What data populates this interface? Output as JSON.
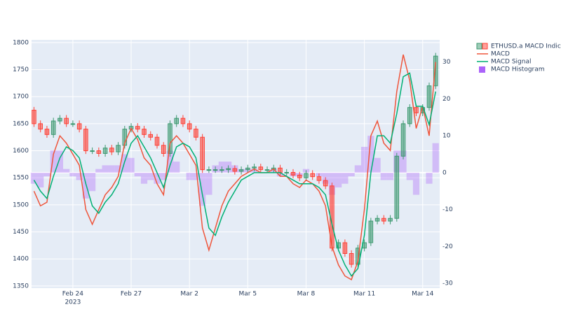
{
  "chart_data": {
    "type": "candlestick",
    "x": [
      "2023-02-22 00:00",
      "2023-02-22 08:00",
      "2023-02-22 16:00",
      "2023-02-23 00:00",
      "2023-02-23 08:00",
      "2023-02-23 16:00",
      "2023-02-24 00:00",
      "2023-02-24 08:00",
      "2023-02-24 16:00",
      "2023-02-25 00:00",
      "2023-02-25 08:00",
      "2023-02-25 16:00",
      "2023-02-26 00:00",
      "2023-02-26 08:00",
      "2023-02-26 16:00",
      "2023-02-27 00:00",
      "2023-02-27 08:00",
      "2023-02-27 16:00",
      "2023-02-28 00:00",
      "2023-02-28 08:00",
      "2023-02-28 16:00",
      "2023-03-01 00:00",
      "2023-03-01 08:00",
      "2023-03-01 16:00",
      "2023-03-02 00:00",
      "2023-03-02 08:00",
      "2023-03-02 16:00",
      "2023-03-03 00:00",
      "2023-03-03 08:00",
      "2023-03-03 16:00",
      "2023-03-04 00:00",
      "2023-03-04 08:00",
      "2023-03-04 16:00",
      "2023-03-05 00:00",
      "2023-03-05 08:00",
      "2023-03-05 16:00",
      "2023-03-06 00:00",
      "2023-03-06 08:00",
      "2023-03-06 16:00",
      "2023-03-07 00:00",
      "2023-03-07 08:00",
      "2023-03-07 16:00",
      "2023-03-08 00:00",
      "2023-03-08 08:00",
      "2023-03-08 16:00",
      "2023-03-09 00:00",
      "2023-03-09 08:00",
      "2023-03-09 16:00",
      "2023-03-10 00:00",
      "2023-03-10 08:00",
      "2023-03-10 16:00",
      "2023-03-11 00:00",
      "2023-03-11 08:00",
      "2023-03-11 16:00",
      "2023-03-12 00:00",
      "2023-03-12 08:00",
      "2023-03-12 16:00",
      "2023-03-13 00:00",
      "2023-03-13 08:00",
      "2023-03-13 16:00",
      "2023-03-14 00:00",
      "2023-03-14 08:00",
      "2023-03-14 16:00"
    ],
    "series": [
      {
        "name": "ETHUSD.a MACD Indicator",
        "type": "candlestick",
        "increasing_color": "#3D9970",
        "decreasing_color": "#FF4136",
        "open": [
          1675,
          1650,
          1640,
          1630,
          1655,
          1660,
          1650,
          1650,
          1640,
          1600,
          1600,
          1595,
          1605,
          1598,
          1610,
          1640,
          1645,
          1640,
          1630,
          1625,
          1610,
          1595,
          1650,
          1660,
          1650,
          1640,
          1625,
          1565,
          1565,
          1565,
          1565,
          1567,
          1562,
          1565,
          1568,
          1570,
          1565,
          1565,
          1568,
          1560,
          1560,
          1555,
          1550,
          1558,
          1552,
          1545,
          1535,
          1420,
          1430,
          1410,
          1390,
          1420,
          1430,
          1470,
          1475,
          1470,
          1475,
          1590,
          1650,
          1680,
          1670,
          1680,
          1720
        ],
        "high": [
          1681,
          1656,
          1646,
          1661,
          1666,
          1666,
          1656,
          1656,
          1646,
          1606,
          1606,
          1611,
          1611,
          1616,
          1646,
          1651,
          1651,
          1646,
          1636,
          1631,
          1616,
          1656,
          1666,
          1666,
          1656,
          1646,
          1631,
          1571,
          1571,
          1571,
          1573,
          1573,
          1571,
          1574,
          1576,
          1576,
          1571,
          1574,
          1574,
          1566,
          1566,
          1561,
          1564,
          1564,
          1558,
          1551,
          1541,
          1436,
          1436,
          1416,
          1426,
          1436,
          1476,
          1481,
          1481,
          1481,
          1596,
          1656,
          1686,
          1686,
          1686,
          1726,
          1781
        ],
        "low": [
          1644,
          1634,
          1624,
          1624,
          1649,
          1644,
          1644,
          1634,
          1594,
          1594,
          1589,
          1589,
          1592,
          1592,
          1604,
          1634,
          1634,
          1624,
          1619,
          1604,
          1589,
          1589,
          1644,
          1644,
          1634,
          1619,
          1559,
          1559,
          1559,
          1559,
          1559,
          1556,
          1556,
          1559,
          1562,
          1559,
          1559,
          1559,
          1554,
          1554,
          1549,
          1544,
          1544,
          1546,
          1539,
          1529,
          1414,
          1414,
          1404,
          1384,
          1384,
          1414,
          1424,
          1464,
          1464,
          1464,
          1469,
          1584,
          1644,
          1664,
          1664,
          1674,
          1714
        ],
        "close": [
          1650,
          1640,
          1630,
          1655,
          1660,
          1650,
          1650,
          1640,
          1600,
          1600,
          1595,
          1605,
          1598,
          1610,
          1640,
          1645,
          1640,
          1630,
          1625,
          1610,
          1595,
          1650,
          1660,
          1650,
          1640,
          1625,
          1565,
          1565,
          1565,
          1565,
          1567,
          1562,
          1565,
          1568,
          1570,
          1565,
          1565,
          1568,
          1560,
          1560,
          1555,
          1550,
          1558,
          1552,
          1545,
          1535,
          1420,
          1430,
          1410,
          1390,
          1420,
          1430,
          1470,
          1475,
          1470,
          1475,
          1590,
          1650,
          1680,
          1670,
          1680,
          1720,
          1775
        ]
      },
      {
        "name": "MACD",
        "type": "line",
        "axis": "y2",
        "color": "#EF553B",
        "values": [
          -5,
          -9,
          -8,
          5,
          10,
          8,
          5,
          2,
          -10,
          -14,
          -10,
          -6,
          -4,
          -1,
          8,
          12,
          9,
          4,
          2,
          -3,
          -6,
          8,
          10,
          8,
          5,
          2,
          -15,
          -21,
          -15,
          -9,
          -5,
          -3,
          -1,
          0,
          1,
          0,
          0,
          1,
          -1,
          -1,
          -3,
          -4,
          -2,
          -3,
          -5,
          -9,
          -20,
          -25,
          -28,
          -29,
          -24,
          -10,
          10,
          14,
          8,
          6,
          22,
          32,
          25,
          12,
          18,
          10,
          30
        ]
      },
      {
        "name": "MACD Signal",
        "type": "line",
        "axis": "y2",
        "color": "#00B074",
        "values": [
          -2,
          -5,
          -7,
          -1,
          4,
          7,
          6,
          4,
          -3,
          -9,
          -11,
          -8,
          -6,
          -3,
          3,
          8,
          10,
          7,
          4,
          0,
          -4,
          2,
          7,
          8,
          7,
          4,
          -6,
          -15,
          -17,
          -12,
          -8,
          -5,
          -2,
          -1,
          0,
          0,
          0,
          0,
          0,
          -1,
          -2,
          -3,
          -3,
          -3,
          -4,
          -6,
          -14,
          -21,
          -25,
          -28,
          -26,
          -17,
          0,
          10,
          10,
          8,
          16,
          26,
          27,
          18,
          18,
          13,
          22
        ]
      },
      {
        "name": "MACD Histogram",
        "type": "bar",
        "axis": "y2",
        "color": "#AB63FA",
        "values": [
          -3,
          -4,
          -1,
          6,
          6,
          1,
          -1,
          -2,
          -7,
          -5,
          1,
          2,
          2,
          2,
          5,
          4,
          -1,
          -3,
          -2,
          -3,
          -2,
          6,
          3,
          0,
          -2,
          -2,
          -9,
          -6,
          2,
          3,
          3,
          2,
          1,
          1,
          1,
          0,
          0,
          1,
          -1,
          0,
          -1,
          -1,
          1,
          0,
          -1,
          -3,
          -6,
          -4,
          -3,
          -1,
          2,
          7,
          10,
          4,
          -2,
          -2,
          6,
          6,
          -2,
          -6,
          0,
          -3,
          8
        ]
      }
    ],
    "xlim": [
      "2023-02-21 21:00",
      "2023-03-14 21:00"
    ],
    "xticks": [
      {
        "value": "2023-02-24",
        "label": "Feb 24"
      },
      {
        "value": "2023-02-27",
        "label": "Feb 27"
      },
      {
        "value": "2023-03-02",
        "label": "Mar 2"
      },
      {
        "value": "2023-03-05",
        "label": "Mar 5"
      },
      {
        "value": "2023-03-08",
        "label": "Mar 8"
      },
      {
        "value": "2023-03-11",
        "label": "Mar 11"
      },
      {
        "value": "2023-03-14",
        "label": "Mar 14"
      }
    ],
    "x_year": "2023",
    "ylim": [
      1346,
      1805
    ],
    "yticks": [
      1350,
      1400,
      1450,
      1500,
      1550,
      1600,
      1650,
      1700,
      1750,
      1800
    ],
    "y2lim": [
      -31.3,
      36
    ],
    "y2ticks": [
      -30,
      -20,
      -10,
      0,
      10,
      20,
      30
    ],
    "grid": true,
    "legend": "right"
  }
}
